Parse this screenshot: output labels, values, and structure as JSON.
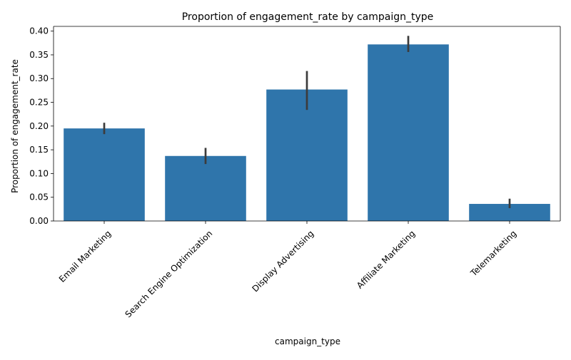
{
  "chart_data": {
    "type": "bar",
    "title": "Proportion of engagement_rate by campaign_type",
    "xlabel": "campaign_type",
    "ylabel": "Proportion of engagement_rate",
    "categories": [
      "Email Marketing",
      "Search Engine Optimization",
      "Display Advertising",
      "Affiliate Marketing",
      "Telemarketing"
    ],
    "values": [
      0.195,
      0.137,
      0.277,
      0.372,
      0.036
    ],
    "error_low": [
      0.183,
      0.12,
      0.234,
      0.356,
      0.027
    ],
    "error_high": [
      0.207,
      0.154,
      0.316,
      0.39,
      0.047
    ],
    "ylim": [
      0,
      0.41
    ],
    "yticks": [
      0.0,
      0.05,
      0.1,
      0.15,
      0.2,
      0.25,
      0.3,
      0.35,
      0.4
    ],
    "ytick_labels": [
      "0.00",
      "0.05",
      "0.10",
      "0.15",
      "0.20",
      "0.25",
      "0.30",
      "0.35",
      "0.40"
    ],
    "bar_color": "#2f75ab",
    "error_color": "#3c3c3c",
    "grid": false,
    "legend": "none"
  }
}
